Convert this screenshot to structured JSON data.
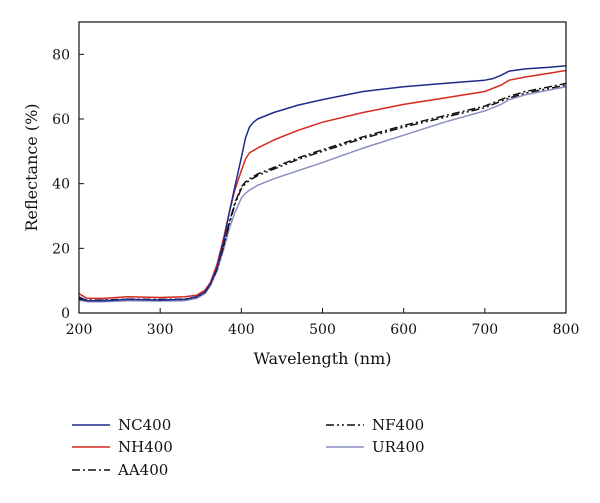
{
  "chart_data": {
    "type": "line",
    "title": "",
    "xlabel": "Wavelength (nm)",
    "ylabel": "Reflectance (%)",
    "xlim": [
      200,
      800
    ],
    "ylim": [
      0,
      90
    ],
    "xticks": [
      200,
      300,
      400,
      500,
      600,
      700,
      800
    ],
    "yticks": [
      0,
      20,
      40,
      60,
      80
    ],
    "grid": false,
    "legend_position": "below",
    "series": [
      {
        "name": "NC400",
        "color": "#1f2a8c",
        "dash": "solid",
        "x": [
          200,
          210,
          230,
          260,
          300,
          330,
          345,
          355,
          362,
          370,
          378,
          385,
          392,
          400,
          405,
          410,
          415,
          420,
          440,
          470,
          500,
          550,
          600,
          650,
          700,
          710,
          720,
          730,
          750,
          780,
          800
        ],
        "y": [
          5,
          3.8,
          3.8,
          4.2,
          4,
          4.2,
          5,
          6.5,
          9,
          14,
          22,
          31,
          39,
          48,
          54,
          57.5,
          59,
          60,
          62,
          64.3,
          66,
          68.5,
          70,
          71,
          72,
          72.5,
          73.5,
          74.8,
          75.5,
          76,
          76.5
        ]
      },
      {
        "name": "NH400",
        "color": "#d42a1e",
        "dash": "solid",
        "x": [
          200,
          210,
          230,
          260,
          300,
          330,
          345,
          355,
          362,
          370,
          378,
          385,
          392,
          400,
          405,
          410,
          420,
          440,
          470,
          500,
          550,
          600,
          650,
          700,
          710,
          720,
          730,
          750,
          780,
          800
        ],
        "y": [
          6,
          4.5,
          4.5,
          5,
          4.8,
          5,
          5.5,
          7,
          9.5,
          15,
          23,
          31,
          38,
          44,
          47.5,
          49.5,
          51,
          53.5,
          56.5,
          59,
          62,
          64.5,
          66.5,
          68.5,
          69.5,
          70.5,
          72,
          73,
          74.2,
          75
        ]
      },
      {
        "name": "AA400",
        "color": "#111111",
        "dash": "8 3 2 3",
        "x": [
          200,
          210,
          230,
          260,
          300,
          330,
          345,
          355,
          362,
          370,
          378,
          385,
          392,
          400,
          405,
          410,
          420,
          440,
          470,
          500,
          550,
          600,
          650,
          700,
          710,
          720,
          730,
          750,
          780,
          800
        ],
        "y": [
          4.5,
          4,
          4,
          4.3,
          4.2,
          4.3,
          5,
          6.5,
          9,
          14,
          21,
          28,
          34,
          39,
          40.5,
          41.5,
          43,
          45,
          48,
          50.5,
          54.5,
          58,
          61,
          64,
          65,
          66,
          67,
          68.5,
          70,
          71
        ]
      },
      {
        "name": "NF400",
        "color": "#111111",
        "dash": "8 3 2 3 2 3",
        "x": [
          200,
          210,
          230,
          260,
          300,
          330,
          345,
          355,
          362,
          370,
          378,
          385,
          392,
          400,
          405,
          410,
          420,
          440,
          470,
          500,
          550,
          600,
          650,
          700,
          710,
          720,
          730,
          750,
          780,
          800
        ],
        "y": [
          4.3,
          3.9,
          3.9,
          4.2,
          4.1,
          4.2,
          4.9,
          6.3,
          8.8,
          13.5,
          20.5,
          27.5,
          33.5,
          38.5,
          40,
          41,
          42.5,
          44.5,
          47.5,
          50,
          54,
          57.5,
          60.5,
          63.5,
          64.5,
          65.5,
          66.5,
          68,
          69.5,
          70.5
        ]
      },
      {
        "name": "UR400",
        "color": "#8a8fc4",
        "dash": "solid",
        "x": [
          200,
          210,
          230,
          260,
          300,
          330,
          345,
          355,
          362,
          370,
          378,
          385,
          392,
          400,
          405,
          410,
          420,
          440,
          470,
          500,
          550,
          600,
          650,
          700,
          710,
          720,
          730,
          750,
          780,
          800
        ],
        "y": [
          4,
          3.5,
          3.5,
          3.8,
          3.7,
          3.8,
          4.5,
          6,
          8.5,
          13,
          19.5,
          26,
          31,
          35.5,
          37,
          38,
          39.5,
          41.5,
          44,
          46.5,
          51,
          55,
          59,
          62.5,
          63.5,
          64.5,
          66,
          67.5,
          69,
          70
        ]
      }
    ]
  }
}
